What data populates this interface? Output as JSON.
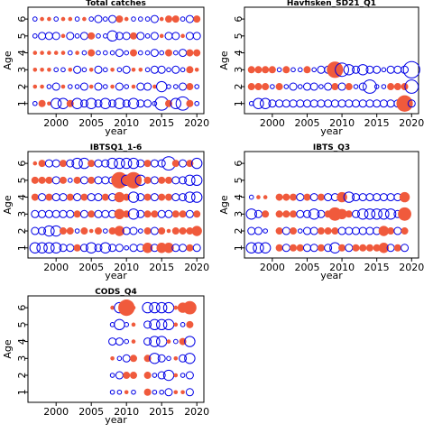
{
  "colors": {
    "positive": "#f05a3c",
    "negative": "#0000e6"
  },
  "chart_data": [
    {
      "type": "scatter",
      "title": "Total catches",
      "xlabel": "year",
      "ylabel": "Age",
      "xlim": [
        1996,
        2021
      ],
      "ylim": [
        0.4,
        6.7
      ],
      "xticks": [
        2000,
        2005,
        2010,
        2015,
        2020
      ],
      "yticks": [
        1,
        2,
        3,
        4,
        5,
        6
      ],
      "x": [
        1997,
        1998,
        1999,
        2000,
        2001,
        2002,
        2003,
        2004,
        2005,
        2006,
        2007,
        2008,
        2009,
        2010,
        2011,
        2012,
        2013,
        2014,
        2015,
        2016,
        2017,
        2018,
        2019,
        2020
      ],
      "residuals": {
        "1": [
          -1,
          2,
          1,
          -3,
          -3,
          2,
          -3,
          -2,
          -3,
          -2,
          -3,
          -2,
          -3,
          -2,
          -3,
          -2,
          -2,
          -1,
          -4,
          2,
          -3,
          -4,
          2,
          -1
        ],
        "2": [
          1,
          1,
          -1,
          -2,
          1,
          -1,
          -1,
          -2,
          1,
          -2,
          -1,
          1,
          -2,
          -1,
          1,
          -2,
          -2,
          1,
          -3,
          -1,
          -1,
          -2,
          2,
          -1
        ],
        "3": [
          1,
          1,
          1,
          -1,
          -1,
          1,
          -2,
          -1,
          1,
          -2,
          -1,
          1,
          -1,
          -2,
          1,
          1,
          -1,
          -2,
          -2,
          -1,
          -2,
          -1,
          2,
          1
        ],
        "4": [
          1,
          1,
          1,
          1,
          1,
          -1,
          1,
          -1,
          2,
          -1,
          -1,
          -1,
          -2,
          -1,
          2,
          -1,
          -1,
          -2,
          -1,
          2,
          -1,
          -2,
          2,
          2
        ],
        "5": [
          -1,
          -2,
          -2,
          -2,
          1,
          -2,
          -1,
          -2,
          2,
          -1,
          -1,
          -3,
          -2,
          -2,
          2,
          -2,
          -1,
          -2,
          1,
          -2,
          -2,
          1,
          -2,
          -2
        ],
        "6": [
          -1,
          1,
          1,
          -1,
          1,
          1,
          -1,
          1,
          -1,
          -2,
          -1,
          -2,
          2,
          1,
          -1,
          -1,
          -1,
          -2,
          1,
          2,
          2,
          -1,
          -2,
          2
        ]
      }
    },
    {
      "type": "scatter",
      "title": "Havfisken_SD21_Q1",
      "xlabel": "year",
      "ylabel": "Age",
      "xlim": [
        1996,
        2021
      ],
      "ylim": [
        0.4,
        6.7
      ],
      "xticks": [
        2000,
        2005,
        2010,
        2015,
        2020
      ],
      "yticks": [
        1,
        2,
        3,
        4,
        5,
        6
      ],
      "x": [
        1997,
        1998,
        1999,
        2000,
        2001,
        2002,
        2003,
        2004,
        2005,
        2006,
        2007,
        2008,
        2009,
        2010,
        2011,
        2012,
        2013,
        2014,
        2015,
        2016,
        2017,
        2018,
        2019,
        2020
      ],
      "residuals": {
        "1": [
          -1,
          -3,
          -3,
          -2,
          -2,
          -2,
          -2,
          -2,
          -2,
          -2,
          -2,
          -2,
          -2,
          -2,
          -2,
          -2,
          -2,
          -2,
          -2,
          -2,
          -2,
          -2,
          5,
          -2
        ],
        "2": [
          2,
          2,
          2,
          -1,
          2,
          -1,
          -2,
          -1,
          -2,
          -2,
          -1,
          -2,
          2,
          -2,
          2,
          -1,
          -2,
          -4,
          -1,
          -1,
          2,
          2,
          2,
          -4
        ],
        "3": [
          2,
          2,
          2,
          2,
          -1,
          2,
          -1,
          -1,
          2,
          -1,
          -2,
          -2,
          5,
          -4,
          -3,
          -2,
          -3,
          -2,
          -2,
          -1,
          -2,
          -2,
          -2,
          -5
        ],
        "4": [
          0,
          0,
          0,
          0,
          0,
          0,
          0,
          0,
          0,
          0,
          0,
          0,
          0,
          0,
          0,
          0,
          0,
          0,
          0,
          0,
          0,
          0,
          0,
          0
        ],
        "5": [
          0,
          0,
          0,
          0,
          0,
          0,
          0,
          0,
          0,
          0,
          0,
          0,
          0,
          0,
          0,
          0,
          0,
          0,
          0,
          0,
          0,
          0,
          0,
          0
        ],
        "6": [
          0,
          0,
          0,
          0,
          0,
          0,
          0,
          0,
          0,
          0,
          0,
          0,
          0,
          0,
          0,
          0,
          0,
          0,
          0,
          0,
          0,
          0,
          0,
          0
        ]
      }
    },
    {
      "type": "scatter",
      "title": "IBTSQ1_1-6",
      "xlabel": "year",
      "ylabel": "Age",
      "xlim": [
        1996,
        2021
      ],
      "ylim": [
        0.4,
        6.7
      ],
      "xticks": [
        2000,
        2005,
        2010,
        2015,
        2020
      ],
      "yticks": [
        1,
        2,
        3,
        4,
        5,
        6
      ],
      "x": [
        1997,
        1998,
        1999,
        2000,
        2001,
        2002,
        2003,
        2004,
        2005,
        2006,
        2007,
        2008,
        2009,
        2010,
        2011,
        2012,
        2013,
        2014,
        2015,
        2016,
        2017,
        2018,
        2019,
        2020
      ],
      "residuals": {
        "1": [
          -3,
          -3,
          -3,
          -3,
          -2,
          -2,
          2,
          -2,
          -3,
          -2,
          -3,
          -2,
          -2,
          -1,
          -2,
          -2,
          3,
          -2,
          3,
          3,
          -2,
          -2,
          2,
          -2
        ],
        "2": [
          -2,
          -2,
          -3,
          -3,
          2,
          2,
          -1,
          2,
          1,
          2,
          -1,
          2,
          3,
          -2,
          -2,
          -1,
          2,
          -2,
          2,
          1,
          2,
          2,
          2,
          3
        ],
        "3": [
          -2,
          -2,
          -2,
          -2,
          -2,
          -2,
          2,
          -2,
          2,
          -2,
          -2,
          -2,
          3,
          2,
          -3,
          -2,
          2,
          2,
          -2,
          -2,
          2,
          2,
          -2,
          2
        ],
        "4": [
          2,
          -2,
          2,
          -2,
          -2,
          2,
          -2,
          2,
          -2,
          -2,
          2,
          -2,
          3,
          2,
          -3,
          -2,
          2,
          -2,
          2,
          2,
          -2,
          -2,
          -3,
          -3
        ],
        "5": [
          2,
          2,
          2,
          -2,
          2,
          -1,
          2,
          -2,
          2,
          -2,
          -2,
          -2,
          5,
          -3,
          5,
          -3,
          2,
          -2,
          2,
          2,
          -2,
          -2,
          -3,
          -3
        ],
        "6": [
          1,
          2,
          -2,
          -2,
          2,
          -2,
          -3,
          -3,
          2,
          -2,
          -2,
          -3,
          -3,
          -3,
          -3,
          -2,
          2,
          -2,
          -2,
          -4,
          2,
          -2,
          2,
          -3
        ]
      }
    },
    {
      "type": "scatter",
      "title": "IBTS_Q3",
      "xlabel": "year",
      "ylabel": "Age",
      "xlim": [
        1996,
        2021
      ],
      "ylim": [
        0.4,
        6.7
      ],
      "xticks": [
        2000,
        2005,
        2010,
        2015,
        2020
      ],
      "yticks": [
        1,
        2,
        3,
        4,
        5,
        6
      ],
      "x": [
        1997,
        1998,
        1999,
        2000,
        2001,
        2002,
        2003,
        2004,
        2005,
        2006,
        2007,
        2008,
        2009,
        2010,
        2011,
        2012,
        2013,
        2014,
        2015,
        2016,
        2017,
        2018,
        2019
      ],
      "residuals": {
        "1": [
          -3,
          -3,
          -3,
          0,
          2,
          -2,
          2,
          2,
          -2,
          -2,
          2,
          -2,
          -3,
          2,
          -2,
          2,
          2,
          2,
          2,
          3,
          -2,
          2,
          -2
        ],
        "2": [
          -2,
          -2,
          -1,
          0,
          2,
          -2,
          2,
          -1,
          -2,
          -2,
          2,
          2,
          2,
          -2,
          -2,
          -2,
          -2,
          -2,
          -2,
          3,
          2,
          -2,
          2
        ],
        "3": [
          -3,
          -2,
          2,
          0,
          2,
          2,
          2,
          -2,
          -2,
          -3,
          -2,
          2,
          4,
          3,
          2,
          -2,
          -3,
          -3,
          -3,
          -3,
          -3,
          -2,
          4
        ],
        "4": [
          -1,
          1,
          1,
          0,
          2,
          2,
          2,
          -2,
          2,
          -2,
          2,
          -2,
          -2,
          3,
          -3,
          -2,
          -2,
          -2,
          -2,
          -2,
          -2,
          -2,
          3
        ],
        "5": [
          0,
          0,
          0,
          0,
          0,
          0,
          0,
          0,
          0,
          0,
          0,
          0,
          0,
          0,
          0,
          0,
          0,
          0,
          0,
          0,
          0,
          0,
          0
        ],
        "6": [
          0,
          0,
          0,
          0,
          0,
          0,
          0,
          0,
          0,
          0,
          0,
          0,
          0,
          0,
          0,
          0,
          0,
          0,
          0,
          0,
          0,
          0,
          0
        ]
      }
    },
    {
      "type": "scatter",
      "title": "CODS_Q4",
      "xlabel": "year",
      "ylabel": "Age",
      "xlim": [
        1996,
        2021
      ],
      "ylim": [
        0.4,
        6.7
      ],
      "xticks": [
        2000,
        2005,
        2010,
        2015,
        2020
      ],
      "yticks": [
        1,
        2,
        3,
        4,
        5,
        6
      ],
      "x": [
        2008,
        2009,
        2010,
        2011,
        2012,
        2013,
        2014,
        2015,
        2016,
        2017,
        2018,
        2019
      ],
      "residuals": {
        "1": [
          -1,
          -1,
          1,
          -1,
          0,
          2,
          -1,
          -1,
          -2,
          1,
          1,
          -2
        ],
        "2": [
          -1,
          -2,
          2,
          2,
          0,
          2,
          -1,
          -2,
          -3,
          1,
          -1,
          -2
        ],
        "3": [
          1,
          -1,
          -2,
          2,
          0,
          2,
          -3,
          -2,
          -1,
          1,
          -2,
          -3
        ],
        "4": [
          -2,
          -2,
          -1,
          1,
          0,
          -2,
          -3,
          -3,
          1,
          -1,
          2,
          -3
        ],
        "5": [
          -1,
          -3,
          -1,
          1,
          0,
          -2,
          -3,
          -3,
          -3,
          1,
          -1,
          2
        ],
        "6": [
          1,
          -3,
          5,
          1,
          0,
          -3,
          -3,
          -3,
          -3,
          1,
          3,
          4
        ]
      }
    }
  ]
}
